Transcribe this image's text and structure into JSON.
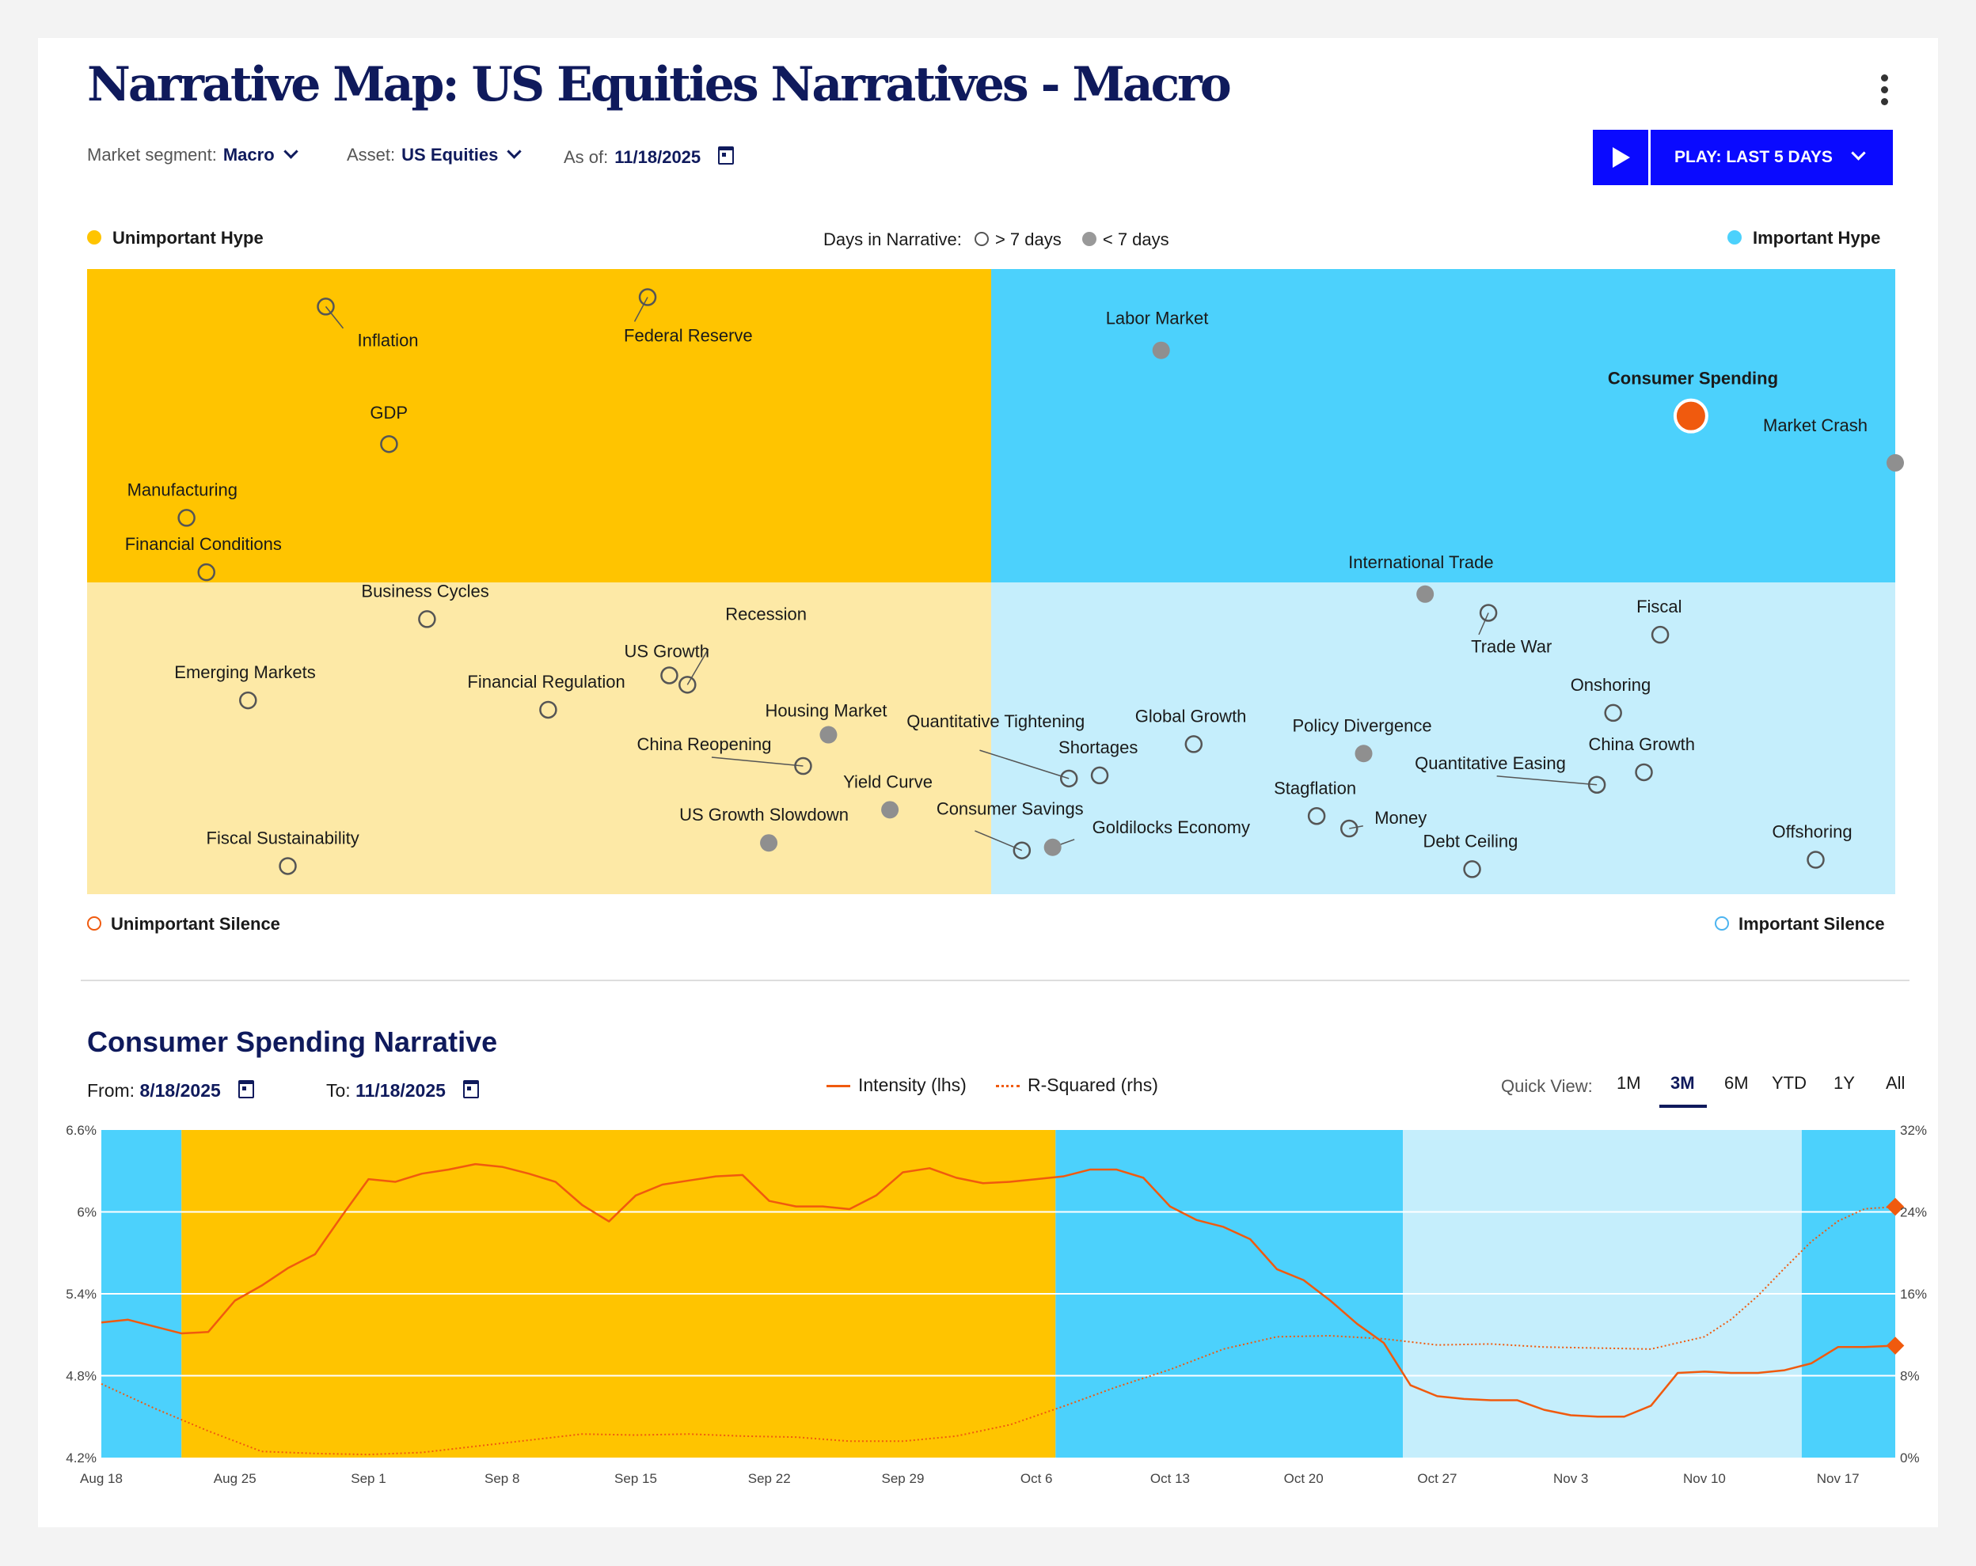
{
  "header": {
    "title": "Narrative Map: US Equities Narratives - Macro"
  },
  "filters": {
    "segment_label": "Market segment:",
    "segment_value": "Macro",
    "asset_label": "Asset:",
    "asset_value": "US Equities",
    "asof_label": "As of:",
    "asof_value": "11/18/2025"
  },
  "play": {
    "label": "PLAY: LAST 5 DAYS"
  },
  "legend": {
    "top_left": "Unimportant Hype",
    "top_right": "Important Hype",
    "bottom_left": "Unimportant Silence",
    "bottom_right": "Important Silence",
    "days_label": "Days in Narrative:",
    "gt7": "> 7 days",
    "lt7": "< 7 days"
  },
  "colors": {
    "unimportant_hype": "#ffc400",
    "important_hype": "#4cd1fc",
    "unimportant_silence": "#fde9a6",
    "important_silence": "#c5eefc",
    "accent_orange": "#f05a0e",
    "navy": "#0f1a5c",
    "button_blue": "#0a0aff"
  },
  "chart_data": [
    {
      "type": "scatter",
      "title": "Narrative Map",
      "xlim": [
        0,
        100
      ],
      "ylim": [
        0,
        100
      ],
      "quadrant_split": {
        "x": 50,
        "y": 50
      },
      "quadrants": [
        "Unimportant Hype",
        "Important Hype",
        "Unimportant Silence",
        "Important Silence"
      ],
      "points": [
        {
          "name": "Inflation",
          "x": 13.2,
          "y": 94,
          "recent": false
        },
        {
          "name": "Federal Reserve",
          "x": 31.0,
          "y": 95.5,
          "recent": false
        },
        {
          "name": "Labor Market",
          "x": 59.4,
          "y": 87,
          "recent": true
        },
        {
          "name": "Consumer Spending",
          "x": 88.7,
          "y": 76.5,
          "recent": true,
          "selected": true
        },
        {
          "name": "Market Crash",
          "x": 100,
          "y": 69,
          "recent": true
        },
        {
          "name": "GDP",
          "x": 16.7,
          "y": 72,
          "recent": false
        },
        {
          "name": "Manufacturing",
          "x": 5.5,
          "y": 60.2,
          "recent": false
        },
        {
          "name": "Financial Conditions",
          "x": 6.6,
          "y": 51.5,
          "recent": false
        },
        {
          "name": "International Trade",
          "x": 74.0,
          "y": 48,
          "recent": true
        },
        {
          "name": "Trade War",
          "x": 77.5,
          "y": 45,
          "recent": false
        },
        {
          "name": "Fiscal",
          "x": 87.0,
          "y": 41.5,
          "recent": false
        },
        {
          "name": "Business Cycles",
          "x": 18.8,
          "y": 44,
          "recent": false
        },
        {
          "name": "Recession",
          "x": 33.2,
          "y": 33.5,
          "recent": false
        },
        {
          "name": "US Growth",
          "x": 32.2,
          "y": 35,
          "recent": false
        },
        {
          "name": "Emerging Markets",
          "x": 8.9,
          "y": 31,
          "recent": false
        },
        {
          "name": "Financial Regulation",
          "x": 25.5,
          "y": 29.5,
          "recent": false
        },
        {
          "name": "Housing Market",
          "x": 41.0,
          "y": 25.5,
          "recent": true
        },
        {
          "name": "Onshoring",
          "x": 84.4,
          "y": 29,
          "recent": false
        },
        {
          "name": "China Reopening",
          "x": 39.6,
          "y": 20.5,
          "recent": false
        },
        {
          "name": "Quantitative Tightening",
          "x": 54.3,
          "y": 18.5,
          "recent": false
        },
        {
          "name": "Shortages",
          "x": 56.0,
          "y": 19,
          "recent": false
        },
        {
          "name": "Global Growth",
          "x": 61.2,
          "y": 24,
          "recent": false
        },
        {
          "name": "Policy Divergence",
          "x": 70.6,
          "y": 22.5,
          "recent": true
        },
        {
          "name": "Quantitative Easing",
          "x": 83.5,
          "y": 17.5,
          "recent": false
        },
        {
          "name": "China Growth",
          "x": 86.1,
          "y": 19.5,
          "recent": false
        },
        {
          "name": "Yield Curve",
          "x": 44.4,
          "y": 13.5,
          "recent": true
        },
        {
          "name": "Consumer Savings",
          "x": 51.7,
          "y": 7,
          "recent": false
        },
        {
          "name": "Goldilocks Economy",
          "x": 53.4,
          "y": 7.5,
          "recent": true
        },
        {
          "name": "Stagflation",
          "x": 68.0,
          "y": 12.5,
          "recent": false
        },
        {
          "name": "Money",
          "x": 69.8,
          "y": 10.5,
          "recent": false
        },
        {
          "name": "Debt Ceiling",
          "x": 76.6,
          "y": 4,
          "recent": false
        },
        {
          "name": "US Growth Slowdown",
          "x": 37.7,
          "y": 8.2,
          "recent": true
        },
        {
          "name": "Fiscal Sustainability",
          "x": 11.1,
          "y": 4.5,
          "recent": false
        },
        {
          "name": "Offshoring",
          "x": 95.6,
          "y": 5.5,
          "recent": false
        }
      ]
    },
    {
      "type": "line",
      "title": "Consumer Spending Narrative",
      "from_label": "From:",
      "from_value": "8/18/2025",
      "to_label": "To:",
      "to_value": "11/18/2025",
      "x_ticks": [
        "Aug 18",
        "Aug 25",
        "Sep 1",
        "Sep 8",
        "Sep 15",
        "Sep 22",
        "Sep 29",
        "Oct 6",
        "Oct 13",
        "Oct 20",
        "Oct 27",
        "Nov 3",
        "Nov 10",
        "Nov 17"
      ],
      "ylim_left": [
        4.2,
        6.6
      ],
      "y_ticks_left": [
        "4.2%",
        "4.8%",
        "5.4%",
        "6%",
        "6.6%"
      ],
      "ylim_right": [
        0,
        32
      ],
      "y_ticks_right": [
        "0%",
        "8%",
        "16%",
        "24%",
        "32%"
      ],
      "x_range_days": [
        0,
        94
      ],
      "bands": [
        {
          "from": 0,
          "to": 4.2,
          "quadrant": "important_hype"
        },
        {
          "from": 4.2,
          "to": 50,
          "quadrant": "unimportant_hype"
        },
        {
          "from": 50,
          "to": 68.2,
          "quadrant": "important_hype"
        },
        {
          "from": 68.2,
          "to": 89.1,
          "quadrant": "important_silence"
        },
        {
          "from": 89.1,
          "to": 94,
          "quadrant": "important_hype"
        }
      ],
      "series": [
        {
          "name": "Intensity (lhs)",
          "axis": "left",
          "style": "solid",
          "x": [
            0,
            1.4,
            2.8,
            4.2,
            5.6,
            7,
            8.4,
            9.8,
            11.2,
            12.6,
            14,
            15.4,
            16.8,
            18.2,
            19.6,
            21,
            22.4,
            23.8,
            25.2,
            26.6,
            28,
            29.4,
            30.8,
            32.2,
            33.6,
            35,
            36.4,
            37.8,
            39.2,
            40.6,
            42,
            43.4,
            44.8,
            46.2,
            47.6,
            49,
            50.4,
            51.8,
            53.2,
            54.6,
            56,
            57.4,
            58.8,
            60.2,
            61.6,
            63,
            64.4,
            65.8,
            67.2,
            68.6,
            70,
            71.4,
            72.8,
            74.2,
            75.6,
            77,
            78.4,
            79.8,
            81.2,
            82.6,
            84,
            85.4,
            86.8,
            88.2,
            89.6,
            91,
            92.4,
            94
          ],
          "values": [
            5.19,
            5.21,
            5.16,
            5.11,
            5.12,
            5.35,
            5.46,
            5.59,
            5.69,
            5.97,
            6.24,
            6.22,
            6.28,
            6.31,
            6.35,
            6.33,
            6.28,
            6.22,
            6.05,
            5.93,
            6.12,
            6.2,
            6.23,
            6.26,
            6.27,
            6.08,
            6.04,
            6.04,
            6.02,
            6.12,
            6.29,
            6.32,
            6.25,
            6.21,
            6.22,
            6.24,
            6.26,
            6.31,
            6.31,
            6.25,
            6.04,
            5.94,
            5.89,
            5.8,
            5.58,
            5.5,
            5.35,
            5.18,
            5.04,
            4.73,
            4.65,
            4.63,
            4.62,
            4.62,
            4.55,
            4.51,
            4.5,
            4.5,
            4.58,
            4.82,
            4.83,
            4.82,
            4.82,
            4.84,
            4.89,
            5.01,
            5.01,
            5.02
          ]
        },
        {
          "name": "R-Squared (rhs)",
          "axis": "right",
          "style": "dotted",
          "x": [
            0,
            2.8,
            5.6,
            8.4,
            11.2,
            14,
            16.8,
            19.6,
            22.4,
            25.2,
            28,
            30.8,
            33.6,
            36.4,
            39.2,
            42,
            44.8,
            47.6,
            50.4,
            53.2,
            56,
            58.8,
            61.6,
            64.4,
            67.2,
            70,
            72.8,
            75.6,
            78.4,
            81.2,
            84,
            85.4,
            86.8,
            88.2,
            89.6,
            91,
            92.4,
            94
          ],
          "values": [
            7.2,
            4.8,
            2.6,
            0.6,
            0.4,
            0.3,
            0.5,
            1.1,
            1.7,
            2.3,
            2.2,
            2.3,
            2.1,
            2.0,
            1.6,
            1.6,
            2.1,
            3.2,
            5.0,
            6.9,
            8.6,
            10.6,
            11.8,
            11.9,
            11.6,
            11.0,
            11.1,
            10.8,
            10.7,
            10.6,
            11.8,
            13.5,
            15.8,
            18.5,
            21.1,
            23.1,
            24.3,
            24.5
          ]
        }
      ]
    }
  ],
  "quick_view": {
    "label": "Quick View:",
    "options": [
      "1M",
      "3M",
      "6M",
      "YTD",
      "1Y",
      "All"
    ],
    "selected": "3M"
  }
}
